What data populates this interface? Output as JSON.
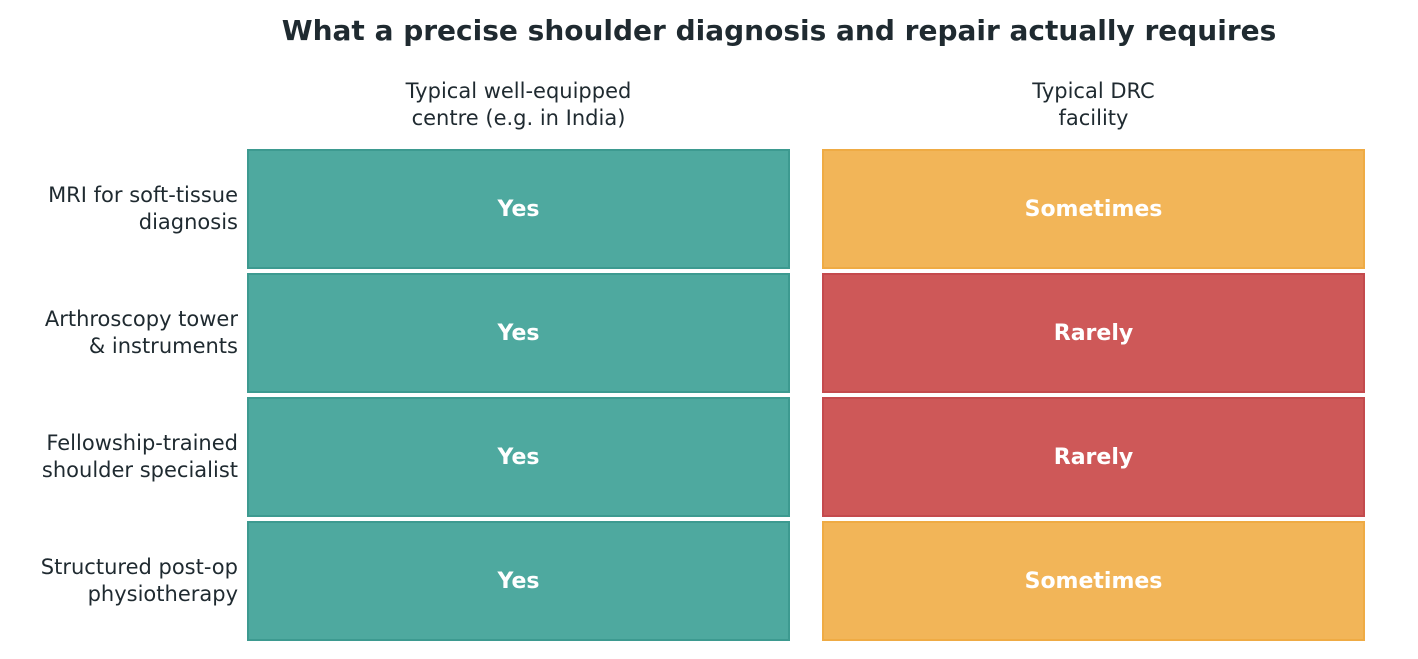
{
  "title": "What a precise shoulder diagnosis and repair actually requires",
  "chart_data": {
    "type": "table",
    "columns": [
      {
        "label": "Typical well-equipped centre (e.g. in India)",
        "lines": [
          "Typical well-equipped",
          "centre (e.g. in India)"
        ]
      },
      {
        "label": "Typical DRC facility",
        "lines": [
          "Typical DRC",
          "facility"
        ]
      }
    ],
    "rows": [
      {
        "label": "MRI for soft-tissue diagnosis",
        "lines": [
          "MRI for soft-tissue",
          "diagnosis"
        ],
        "values": [
          "Yes",
          "Sometimes"
        ]
      },
      {
        "label": "Arthroscopy tower & instruments",
        "lines": [
          "Arthroscopy tower",
          "& instruments"
        ],
        "values": [
          "Yes",
          "Rarely"
        ]
      },
      {
        "label": "Fellowship-trained shoulder specialist",
        "lines": [
          "Fellowship-trained",
          "shoulder specialist"
        ],
        "values": [
          "Yes",
          "Rarely"
        ]
      },
      {
        "label": "Structured post-op physiotherapy",
        "lines": [
          "Structured post-op",
          "physiotherapy"
        ],
        "values": [
          "Yes",
          "Sometimes"
        ]
      }
    ],
    "colors": {
      "Yes": {
        "fill": "#4ea99f",
        "border": "#3d9a90"
      },
      "Sometimes": {
        "fill": "#f2b558",
        "border": "#efab44"
      },
      "Rarely": {
        "fill": "#ce5858",
        "border": "#c44a4d"
      }
    }
  }
}
